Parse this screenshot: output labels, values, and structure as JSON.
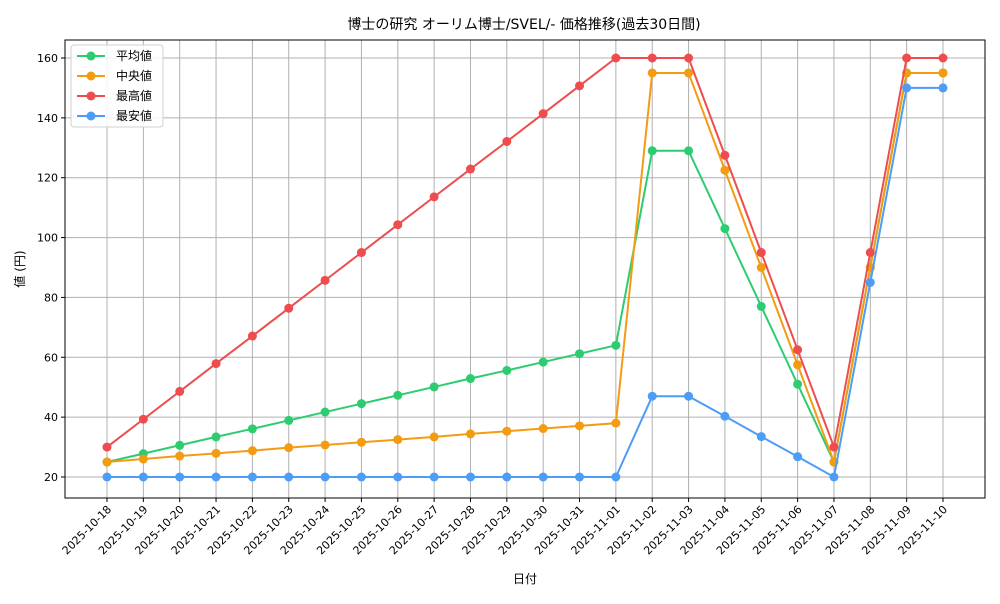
{
  "chart_data": {
    "type": "line",
    "title": "博士の研究 オーリム博士/SVEL/- 価格推移(過去30日間)",
    "xlabel": "日付",
    "ylabel": "値 (円)",
    "categories": [
      "2025-10-18",
      "2025-10-19",
      "2025-10-20",
      "2025-10-21",
      "2025-10-22",
      "2025-10-23",
      "2025-10-24",
      "2025-10-25",
      "2025-10-26",
      "2025-10-27",
      "2025-10-28",
      "2025-10-29",
      "2025-10-30",
      "2025-10-31",
      "2025-11-01",
      "2025-11-02",
      "2025-11-03",
      "2025-11-04",
      "2025-11-05",
      "2025-11-06",
      "2025-11-07",
      "2025-11-08",
      "2025-11-09",
      "2025-11-10"
    ],
    "yticks": [
      20,
      40,
      60,
      80,
      100,
      120,
      140,
      160
    ],
    "ylim": [
      13,
      167
    ],
    "grid": true,
    "legend_position": "upper left",
    "series": [
      {
        "name": "平均値",
        "color": "#2ecc71",
        "values": [
          25,
          27.8,
          30.6,
          33.4,
          36.1,
          38.9,
          41.7,
          44.5,
          47.3,
          50.1,
          52.9,
          55.6,
          58.4,
          61.2,
          64,
          129,
          129,
          103,
          77,
          51,
          25,
          90,
          155,
          155
        ]
      },
      {
        "name": "中央値",
        "color": "#f39c12",
        "values": [
          25,
          26,
          27,
          27.9,
          28.8,
          29.8,
          30.7,
          31.6,
          32.5,
          33.4,
          34.4,
          35.3,
          36.2,
          37.1,
          38,
          155,
          155,
          122.5,
          90,
          57.5,
          25,
          90,
          155,
          155
        ]
      },
      {
        "name": "最高値",
        "color": "#ef4d4d",
        "values": [
          30,
          39.3,
          48.6,
          57.9,
          67.1,
          76.4,
          85.7,
          95,
          104.3,
          113.6,
          122.9,
          132.1,
          141.4,
          150.7,
          160,
          160,
          160,
          127.5,
          95,
          62.5,
          30,
          95,
          160,
          160
        ]
      },
      {
        "name": "最安値",
        "color": "#4d9cf5",
        "values": [
          20,
          20,
          20,
          20,
          20,
          20,
          20,
          20,
          20,
          20,
          20,
          20,
          20,
          20,
          20,
          47,
          47,
          40.3,
          33.5,
          26.8,
          20,
          85,
          150,
          150
        ]
      }
    ]
  }
}
